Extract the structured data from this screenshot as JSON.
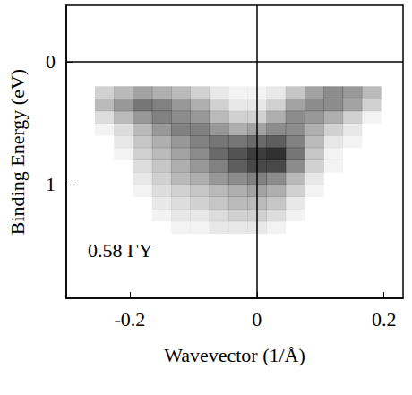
{
  "chart_data": {
    "type": "heatmap",
    "x_label": "Wavevector (1/Å)",
    "y_label": "Binding Energy (eV)",
    "annotation": "0.58 ΓY",
    "color": "#1a1a1a",
    "xlim": [
      -0.3,
      0.23
    ],
    "xticks": [
      -0.2,
      0,
      0.2
    ],
    "ylim": [
      -0.46,
      1.93
    ],
    "yticks": [
      0,
      1
    ],
    "x": [
      -0.24,
      -0.21,
      -0.18,
      -0.15,
      -0.12,
      -0.09,
      -0.06,
      -0.03,
      0,
      0.03,
      0.06,
      0.09,
      0.12,
      0.15,
      0.18
    ],
    "y": [
      0.25,
      0.35,
      0.45,
      0.55,
      0.65,
      0.75,
      0.85,
      0.95,
      1.05,
      1.15,
      1.25,
      1.35
    ],
    "values": [
      [
        0.2,
        0.3,
        0.4,
        0.35,
        0.3,
        0.2,
        0.1,
        0.05,
        0.05,
        0.1,
        0.25,
        0.4,
        0.5,
        0.45,
        0.3
      ],
      [
        0.3,
        0.45,
        0.6,
        0.55,
        0.45,
        0.35,
        0.2,
        0.1,
        0.1,
        0.2,
        0.4,
        0.5,
        0.5,
        0.4,
        0.2
      ],
      [
        0.15,
        0.3,
        0.45,
        0.55,
        0.5,
        0.45,
        0.3,
        0.2,
        0.2,
        0.35,
        0.5,
        0.45,
        0.35,
        0.2,
        0.05
      ],
      [
        0.05,
        0.15,
        0.3,
        0.45,
        0.55,
        0.55,
        0.45,
        0.35,
        0.4,
        0.5,
        0.5,
        0.35,
        0.2,
        0.1,
        0
      ],
      [
        0,
        0.1,
        0.25,
        0.35,
        0.45,
        0.55,
        0.6,
        0.6,
        0.65,
        0.7,
        0.55,
        0.3,
        0.1,
        0.05,
        0
      ],
      [
        0,
        0.05,
        0.2,
        0.3,
        0.4,
        0.5,
        0.65,
        0.75,
        0.85,
        0.9,
        0.6,
        0.25,
        0.05,
        0,
        0
      ],
      [
        0,
        0,
        0.15,
        0.25,
        0.35,
        0.45,
        0.55,
        0.7,
        0.8,
        0.8,
        0.5,
        0.2,
        0.05,
        0,
        0
      ],
      [
        0,
        0,
        0.1,
        0.2,
        0.3,
        0.35,
        0.45,
        0.5,
        0.55,
        0.5,
        0.3,
        0.1,
        0,
        0,
        0
      ],
      [
        0,
        0,
        0.05,
        0.15,
        0.2,
        0.25,
        0.3,
        0.35,
        0.4,
        0.35,
        0.2,
        0.05,
        0,
        0,
        0
      ],
      [
        0,
        0,
        0,
        0.1,
        0.15,
        0.2,
        0.25,
        0.3,
        0.3,
        0.25,
        0.1,
        0,
        0,
        0,
        0
      ],
      [
        0,
        0,
        0,
        0.05,
        0.1,
        0.1,
        0.15,
        0.2,
        0.2,
        0.15,
        0.05,
        0,
        0,
        0,
        0
      ],
      [
        0,
        0,
        0,
        0,
        0.05,
        0.05,
        0.1,
        0.1,
        0.1,
        0.05,
        0,
        0,
        0,
        0,
        0
      ]
    ]
  }
}
